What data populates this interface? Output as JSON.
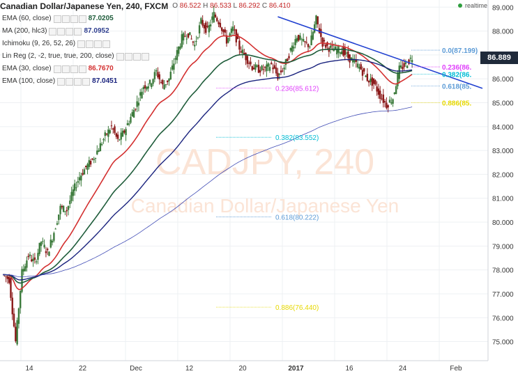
{
  "header": {
    "title": "Canadian Dollar/Japanese Yen, 240, FXCM",
    "ohlc": [
      {
        "k": "O",
        "v": "86.522"
      },
      {
        "k": "H",
        "v": "86.533"
      },
      {
        "k": "L",
        "v": "86.292"
      },
      {
        "k": "C",
        "v": "86.410"
      }
    ],
    "realtime": "realtime"
  },
  "indicators": [
    {
      "name": "EMA (60, close)",
      "value": "87.0205",
      "color": "#1e5c3a"
    },
    {
      "name": "MA (200, hlc3)",
      "value": "87.0952",
      "color": "#2f3f8f"
    },
    {
      "name": "Ichimoku (9, 26, 52, 26)",
      "value": "",
      "color": "#9aa3b5"
    },
    {
      "name": "Lin Reg (2, -2, true, true, 200, close)",
      "value": "",
      "color": "#9aa3b5"
    },
    {
      "name": "EMA (30, close)",
      "value": "86.7670",
      "color": "#d32f2f"
    },
    {
      "name": "EMA (100, close)",
      "value": "87.0451",
      "color": "#1a237e"
    }
  ],
  "watermark": {
    "symbol": "CADJPY, 240",
    "description": "Canadian Dollar/Japanese Yen"
  },
  "last_price": "86.889",
  "chart_data": {
    "type": "candlestick",
    "title": "Canadian Dollar/Japanese Yen, 240, FXCM",
    "x_tick_labels": [
      "14",
      "22",
      "Dec",
      "12",
      "20",
      "2017",
      "16",
      "24",
      "Feb"
    ],
    "y_tick_labels": [
      "75.000",
      "76.000",
      "77.000",
      "78.000",
      "79.000",
      "80.000",
      "81.000",
      "82.000",
      "83.000",
      "84.000",
      "85.000",
      "86.000",
      "87.000",
      "88.000",
      "89.000"
    ],
    "ylim": [
      74.2,
      89.3
    ],
    "price_path": [
      [
        0,
        77.8
      ],
      [
        1,
        77.6
      ],
      [
        2,
        75.0
      ],
      [
        3,
        77.9
      ],
      [
        4,
        78.6
      ],
      [
        5,
        78.3
      ],
      [
        6,
        79.2
      ],
      [
        7,
        78.7
      ],
      [
        8,
        79.6
      ],
      [
        9,
        80.6
      ],
      [
        10,
        80.5
      ],
      [
        11,
        81.3
      ],
      [
        12,
        81.9
      ],
      [
        13,
        82.3
      ],
      [
        14,
        82.6
      ],
      [
        15,
        83.1
      ],
      [
        16,
        83.6
      ],
      [
        17,
        84.0
      ],
      [
        18,
        83.4
      ],
      [
        19,
        83.8
      ],
      [
        20,
        84.4
      ],
      [
        21,
        85.0
      ],
      [
        22,
        85.7
      ],
      [
        23,
        85.8
      ],
      [
        24,
        86.3
      ],
      [
        25,
        85.7
      ],
      [
        26,
        86.0
      ],
      [
        27,
        86.9
      ],
      [
        28,
        87.7
      ],
      [
        29,
        87.9
      ],
      [
        30,
        87.4
      ],
      [
        31,
        88.4
      ],
      [
        32,
        88.0
      ],
      [
        33,
        88.7
      ],
      [
        34,
        88.3
      ],
      [
        35,
        87.6
      ],
      [
        36,
        88.1
      ],
      [
        37,
        87.3
      ],
      [
        38,
        86.9
      ],
      [
        39,
        86.5
      ],
      [
        40,
        86.4
      ],
      [
        41,
        86.4
      ],
      [
        42,
        86.6
      ],
      [
        43,
        86.1
      ],
      [
        44,
        86.5
      ],
      [
        45,
        87.2
      ],
      [
        46,
        87.8
      ],
      [
        47,
        87.5
      ],
      [
        48,
        87.4
      ],
      [
        49,
        88.5
      ],
      [
        50,
        87.5
      ],
      [
        51,
        87.3
      ],
      [
        52,
        87.2
      ],
      [
        53,
        87.2
      ],
      [
        54,
        86.9
      ],
      [
        55,
        86.7
      ],
      [
        56,
        86.4
      ],
      [
        57,
        86.0
      ],
      [
        58,
        85.8
      ],
      [
        59,
        85.3
      ],
      [
        60,
        84.9
      ],
      [
        61,
        85.2
      ],
      [
        62,
        86.4
      ],
      [
        63,
        86.6
      ],
      [
        64,
        86.9
      ]
    ],
    "trendline": [
      [
        43,
        88.6
      ],
      [
        75,
        85.6
      ]
    ],
    "fib_levels_left": [
      {
        "label": "0.236(85.612)",
        "value": 85.612,
        "color": "#e040fb"
      },
      {
        "label": "0.382(83.552)",
        "value": 83.552,
        "color": "#00bcd4"
      },
      {
        "label": "0.618(80.222)",
        "value": 80.222,
        "color": "#5c9bd6"
      },
      {
        "label": "0.886(76.440)",
        "value": 76.44,
        "color": "#e6d800"
      }
    ],
    "fib_levels_right": [
      {
        "label": "0.0(87.199)",
        "value": 87.199,
        "color": "#5c9bd6"
      },
      {
        "label": "0.236(86.",
        "value": 86.5,
        "color": "#e040fb"
      },
      {
        "label": "0.382(86.",
        "value": 86.2,
        "color": "#00bcd4"
      },
      {
        "label": "0.618(85.",
        "value": 85.7,
        "color": "#5c9bd6"
      },
      {
        "label": "0.886(85.",
        "value": 85.0,
        "color": "#e6d800"
      }
    ],
    "colors": {
      "up": "#2e2e2e",
      "down": "#2e2e2e",
      "ema30": "#d32f2f",
      "ema60": "#1e5c3a",
      "ema100": "#1a237e",
      "ma200": "#3f4bb5",
      "trendline": "#1f3fd0",
      "bull_candle": "#3b7a3b",
      "bear_candle": "#8b1a1a"
    },
    "grid": true
  }
}
